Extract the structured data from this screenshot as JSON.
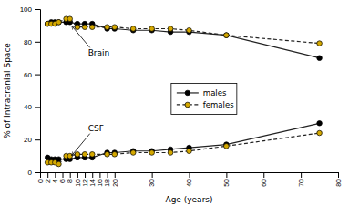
{
  "chart_data": {
    "type": "line",
    "xlabel": "Age (years)",
    "ylabel": "% of Intracranial Space",
    "x": [
      2,
      3,
      4,
      5,
      7,
      8,
      10,
      12,
      14,
      18,
      20,
      25,
      30,
      35,
      40,
      50,
      75
    ],
    "series": [
      {
        "name": "males",
        "color": "#000000",
        "line_style": "solid",
        "values": [
          91,
          92,
          92,
          92,
          92,
          92,
          91,
          91,
          91,
          88,
          88,
          87,
          87,
          86,
          86,
          84,
          70
        ]
      },
      {
        "name": "females",
        "color": "#d4a800",
        "line_style": "dashed",
        "values": [
          91,
          91,
          91,
          92,
          94,
          94,
          89,
          89,
          89,
          89,
          89,
          88,
          88,
          88,
          87,
          84,
          79
        ]
      },
      {
        "name": "males",
        "color": "#000000",
        "line_style": "solid",
        "values": [
          9,
          8,
          8,
          8,
          8,
          8,
          9,
          9,
          9,
          12,
          12,
          13,
          13,
          14,
          15,
          17,
          30
        ]
      },
      {
        "name": "females",
        "color": "#d4a800",
        "line_style": "dashed",
        "values": [
          6,
          6,
          6,
          5,
          10,
          10,
          11,
          11,
          11,
          11,
          11,
          12,
          12,
          12,
          13,
          16,
          24
        ]
      }
    ],
    "marker": "circle",
    "xlim": [
      0,
      80
    ],
    "ylim": [
      0,
      100
    ],
    "xticks": [
      0,
      2,
      4,
      6,
      8,
      10,
      12,
      14,
      16,
      18,
      20,
      30,
      40,
      50,
      60,
      70,
      80
    ],
    "yticks": [
      0,
      20,
      40,
      60,
      80,
      100
    ],
    "annotations": [
      {
        "text": "Brain",
        "x": 8,
        "y": 92
      },
      {
        "text": "CSF",
        "x": 8,
        "y": 8
      }
    ],
    "legend": "center",
    "grid": false
  }
}
